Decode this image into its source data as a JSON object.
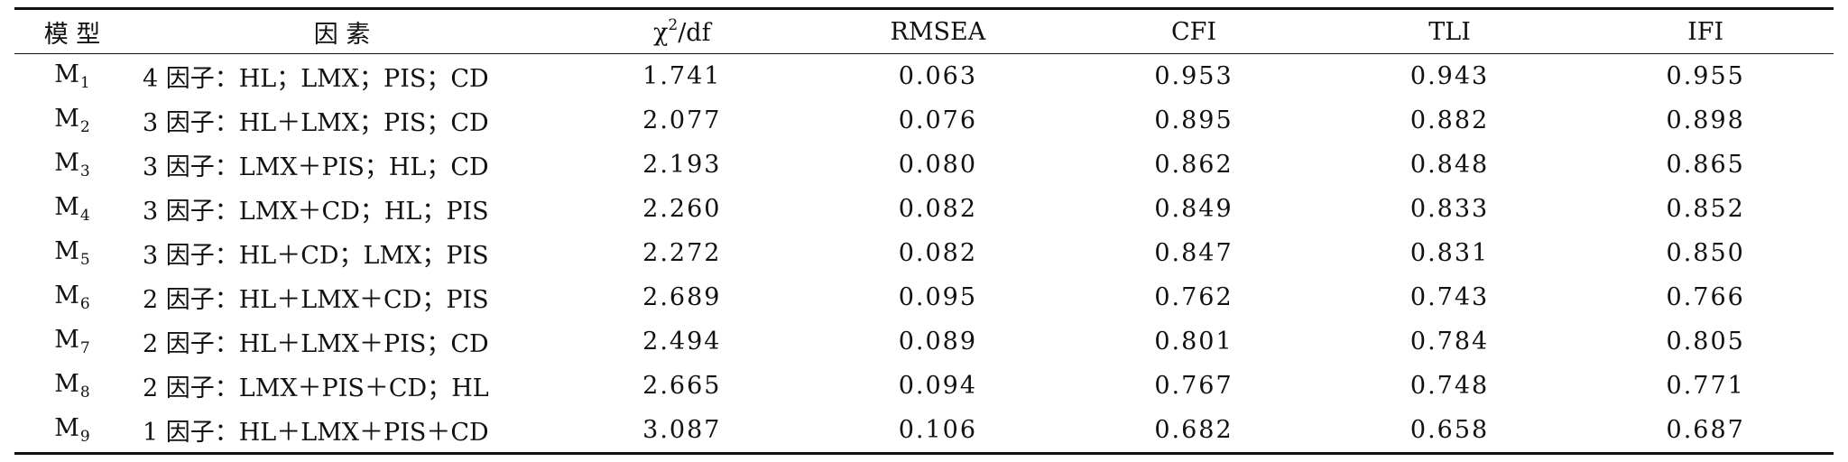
{
  "table": {
    "headers": {
      "model": "模 型",
      "factors": "因 素",
      "chi_base": "χ",
      "chi_sup": "2",
      "chi_tail": "/df",
      "rmsea": "RMSEA",
      "cfi": "CFI",
      "tli": "TLI",
      "ifi": "IFI"
    },
    "rows": [
      {
        "model": "M",
        "sub": "1",
        "factors": "4 因子：HL；LMX；PIS；CD",
        "chi2df": "1.741",
        "rmsea": "0.063",
        "cfi": "0.953",
        "tli": "0.943",
        "ifi": "0.955"
      },
      {
        "model": "M",
        "sub": "2",
        "factors": "3 因子：HL＋LMX；PIS；CD",
        "chi2df": "2.077",
        "rmsea": "0.076",
        "cfi": "0.895",
        "tli": "0.882",
        "ifi": "0.898"
      },
      {
        "model": "M",
        "sub": "3",
        "factors": "3 因子：LMX＋PIS；HL；CD",
        "chi2df": "2.193",
        "rmsea": "0.080",
        "cfi": "0.862",
        "tli": "0.848",
        "ifi": "0.865"
      },
      {
        "model": "M",
        "sub": "4",
        "factors": "3 因子：LMX＋CD；HL；PIS",
        "chi2df": "2.260",
        "rmsea": "0.082",
        "cfi": "0.849",
        "tli": "0.833",
        "ifi": "0.852"
      },
      {
        "model": "M",
        "sub": "5",
        "factors": "3 因子：HL＋CD；LMX；PIS",
        "chi2df": "2.272",
        "rmsea": "0.082",
        "cfi": "0.847",
        "tli": "0.831",
        "ifi": "0.850"
      },
      {
        "model": "M",
        "sub": "6",
        "factors": "2 因子：HL＋LMX＋CD；PIS",
        "chi2df": "2.689",
        "rmsea": "0.095",
        "cfi": "0.762",
        "tli": "0.743",
        "ifi": "0.766"
      },
      {
        "model": "M",
        "sub": "7",
        "factors": "2 因子：HL＋LMX＋PIS；CD",
        "chi2df": "2.494",
        "rmsea": "0.089",
        "cfi": "0.801",
        "tli": "0.784",
        "ifi": "0.805"
      },
      {
        "model": "M",
        "sub": "8",
        "factors": "2 因子：LMX＋PIS＋CD；HL",
        "chi2df": "2.665",
        "rmsea": "0.094",
        "cfi": "0.767",
        "tli": "0.748",
        "ifi": "0.771"
      },
      {
        "model": "M",
        "sub": "9",
        "factors": "1 因子：HL＋LMX＋PIS＋CD",
        "chi2df": "3.087",
        "rmsea": "0.106",
        "cfi": "0.682",
        "tli": "0.658",
        "ifi": "0.687"
      }
    ]
  }
}
